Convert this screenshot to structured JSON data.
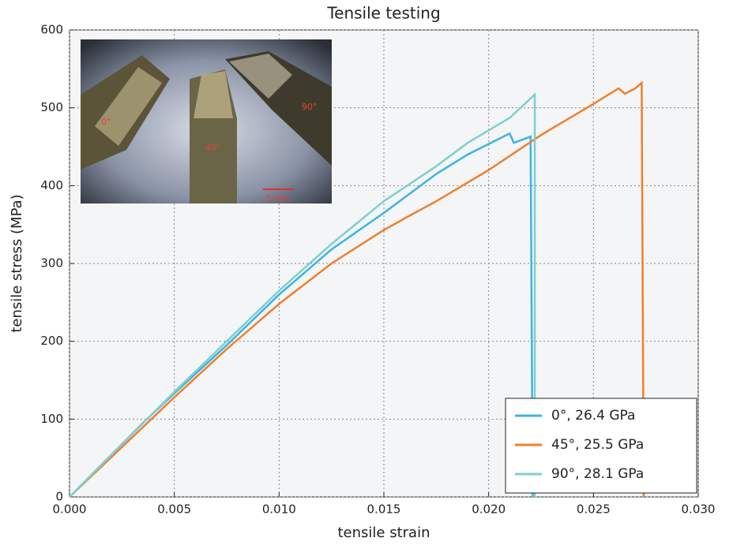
{
  "chart_data": {
    "type": "line",
    "title": "Tensile testing",
    "x_label": "tensile strain",
    "y_label": "tensile stress (MPa)",
    "xlim": [
      0,
      0.03
    ],
    "ylim": [
      0,
      600
    ],
    "xticks": [
      {
        "value": 0,
        "label": "0.000"
      },
      0.005,
      {
        "value": 0.01,
        "label": "0.010"
      },
      0.015,
      {
        "value": 0.02,
        "label": "0.020"
      },
      0.025,
      {
        "value": 0.03,
        "label": "0.030"
      }
    ],
    "yticks": [
      0,
      100,
      200,
      300,
      400,
      500,
      600
    ],
    "grid": true,
    "legend": "lower right",
    "series": [
      {
        "name": "0°, 26.4 GPa",
        "color": "#3cb4e0",
        "x": [
          0,
          0.0035,
          0.005,
          0.0075,
          0.01,
          0.0125,
          0.015,
          0.0175,
          0.019,
          0.021,
          0.0212,
          0.022,
          0.0221
        ],
        "values": [
          0,
          95,
          133,
          195,
          260,
          318,
          365,
          415,
          440,
          467,
          455,
          463,
          0
        ]
      },
      {
        "name": "45°, 25.5 GPa",
        "color": "#f07f2a",
        "x": [
          0,
          0.005,
          0.0075,
          0.01,
          0.0125,
          0.015,
          0.016,
          0.0175,
          0.02,
          0.0225,
          0.025,
          0.0262,
          0.0265,
          0.027,
          0.0273,
          0.0274
        ],
        "values": [
          0,
          128,
          190,
          248,
          300,
          343,
          358,
          380,
          420,
          465,
          505,
          525,
          518,
          525,
          532,
          0
        ]
      },
      {
        "name": "90°, 28.1 GPa",
        "color": "#7ecfcf",
        "x": [
          0,
          0.005,
          0.0075,
          0.01,
          0.0125,
          0.015,
          0.0175,
          0.019,
          0.021,
          0.0222,
          0.0222
        ],
        "values": [
          0,
          135,
          200,
          265,
          325,
          380,
          425,
          455,
          487,
          517,
          0
        ]
      }
    ],
    "inset": {
      "labels": [
        "0°",
        "45°",
        "90°"
      ],
      "scale_bar": "1 mm"
    }
  }
}
